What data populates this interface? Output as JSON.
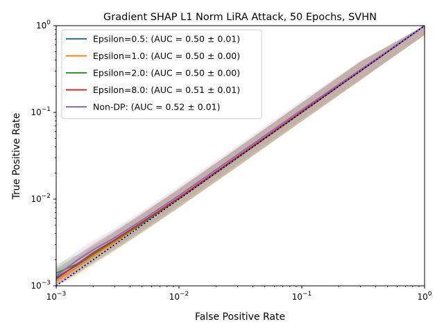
{
  "chart_data": {
    "type": "line",
    "title": "Gradient SHAP L1 Norm LiRA Attack, 50 Epochs, SVHN",
    "xlabel": "False Positive Rate",
    "ylabel": "True Positive Rate",
    "xscale": "log",
    "yscale": "log",
    "xlim": [
      0.001,
      1
    ],
    "ylim": [
      0.001,
      1
    ],
    "x_ticks": [
      {
        "value": 0.001,
        "base": "10",
        "exp": "−3"
      },
      {
        "value": 0.01,
        "base": "10",
        "exp": "−2"
      },
      {
        "value": 0.1,
        "base": "10",
        "exp": "−1"
      },
      {
        "value": 1,
        "base": "10",
        "exp": "0"
      }
    ],
    "y_ticks": [
      {
        "value": 0.001,
        "base": "10",
        "exp": "−3"
      },
      {
        "value": 0.01,
        "base": "10",
        "exp": "−2"
      },
      {
        "value": 0.1,
        "base": "10",
        "exp": "−1"
      },
      {
        "value": 1,
        "base": "10",
        "exp": "0"
      }
    ],
    "legend_position": "upper-left",
    "baseline": {
      "style": "dotted",
      "color": "#000080",
      "x": [
        0.001,
        1
      ],
      "y": [
        0.001,
        1
      ]
    },
    "series": [
      {
        "name": "Epsilon=0.5: (AUC = 0.50 ± 0.01)",
        "color": "#1f77b4",
        "x": [
          0.001,
          0.0015,
          0.002,
          0.003,
          0.005,
          0.01,
          0.03,
          0.1,
          0.3,
          1
        ],
        "y": [
          0.00125,
          0.00175,
          0.0023,
          0.0033,
          0.0053,
          0.0103,
          0.0305,
          0.101,
          0.301,
          1
        ]
      },
      {
        "name": "Epsilon=1.0: (AUC = 0.50 ± 0.00)",
        "color": "#ff7f0e",
        "x": [
          0.001,
          0.0015,
          0.002,
          0.003,
          0.005,
          0.01,
          0.03,
          0.1,
          0.3,
          1
        ],
        "y": [
          0.00115,
          0.00165,
          0.0022,
          0.0032,
          0.0052,
          0.0102,
          0.0302,
          0.1005,
          0.3005,
          1
        ]
      },
      {
        "name": "Epsilon=2.0: (AUC = 0.50 ± 0.00)",
        "color": "#2ca02c",
        "x": [
          0.001,
          0.0015,
          0.002,
          0.003,
          0.005,
          0.01,
          0.03,
          0.1,
          0.3,
          1
        ],
        "y": [
          0.0014,
          0.0018,
          0.0023,
          0.0033,
          0.0052,
          0.0101,
          0.03,
          0.1,
          0.3,
          1
        ]
      },
      {
        "name": "Epsilon=8.0: (AUC = 0.51 ± 0.01)",
        "color": "#d62728",
        "x": [
          0.001,
          0.0015,
          0.002,
          0.003,
          0.005,
          0.01,
          0.03,
          0.1,
          0.3,
          1
        ],
        "y": [
          0.0012,
          0.0018,
          0.0024,
          0.0034,
          0.0054,
          0.0104,
          0.0307,
          0.102,
          0.302,
          1
        ]
      },
      {
        "name": "Non-DP: (AUC = 0.52 ± 0.01)",
        "color": "#9467bd",
        "x": [
          0.001,
          0.0015,
          0.002,
          0.003,
          0.005,
          0.01,
          0.03,
          0.1,
          0.3,
          1
        ],
        "y": [
          0.0013,
          0.002,
          0.0026,
          0.0036,
          0.0057,
          0.011,
          0.0325,
          0.107,
          0.31,
          1
        ]
      }
    ]
  }
}
